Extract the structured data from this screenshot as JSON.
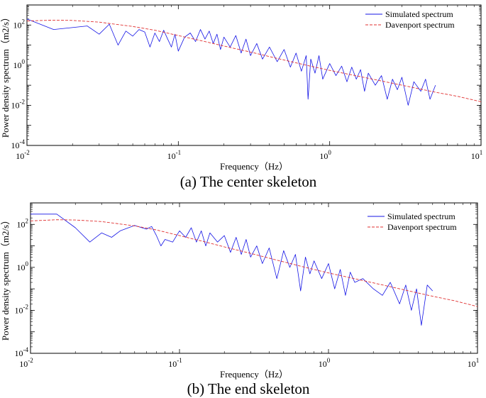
{
  "chart_data": [
    {
      "type": "line",
      "title": "",
      "caption": "(a) The center skeleton",
      "xlabel": "Frequency（Hz）",
      "ylabel": "Power density spectrum（m2/s）",
      "xscale": "log",
      "yscale": "log",
      "xlim": [
        0.01,
        10
      ],
      "ylim": [
        0.0001,
        1000
      ],
      "xticks": [
        {
          "base": "10",
          "exp": "-2",
          "value": 0.01
        },
        {
          "base": "10",
          "exp": "-1",
          "value": 0.1
        },
        {
          "base": "10",
          "exp": "0",
          "value": 1
        },
        {
          "base": "10",
          "exp": "1",
          "value": 10
        }
      ],
      "yticks": [
        {
          "base": "10",
          "exp": "-4",
          "value": 0.0001
        },
        {
          "base": "10",
          "exp": "-2",
          "value": 0.01
        },
        {
          "base": "10",
          "exp": "0",
          "value": 1
        },
        {
          "base": "10",
          "exp": "2",
          "value": 100
        }
      ],
      "legend_position": "top-right",
      "series": [
        {
          "name": "Simulated spectrum",
          "color": "#1414e6",
          "style": "solid",
          "x": [
            0.01,
            0.015,
            0.025,
            0.03,
            0.035,
            0.04,
            0.045,
            0.05,
            0.055,
            0.06,
            0.065,
            0.07,
            0.075,
            0.08,
            0.085,
            0.09,
            0.095,
            0.1,
            0.11,
            0.12,
            0.13,
            0.14,
            0.15,
            0.16,
            0.17,
            0.18,
            0.19,
            0.2,
            0.22,
            0.24,
            0.26,
            0.28,
            0.3,
            0.33,
            0.36,
            0.4,
            0.45,
            0.5,
            0.55,
            0.6,
            0.65,
            0.7,
            0.72,
            0.75,
            0.8,
            0.85,
            0.9,
            1,
            1.1,
            1.2,
            1.3,
            1.4,
            1.5,
            1.6,
            1.7,
            1.8,
            2,
            2.2,
            2.4,
            2.6,
            2.8,
            3,
            3.3,
            3.6,
            4,
            4.3,
            4.6,
            5
          ],
          "y": [
            200,
            60,
            90,
            35,
            110,
            10,
            50,
            28,
            60,
            45,
            8,
            40,
            15,
            55,
            20,
            8,
            35,
            5,
            25,
            40,
            15,
            60,
            20,
            50,
            12,
            35,
            6,
            25,
            8,
            30,
            4,
            20,
            3,
            12,
            2,
            8,
            1.5,
            6,
            0.8,
            4,
            0.5,
            3,
            0.02,
            2,
            0.4,
            3,
            0.2,
            1.2,
            0.3,
            0.9,
            0.15,
            0.8,
            0.2,
            0.6,
            0.05,
            0.4,
            0.1,
            0.3,
            0.02,
            0.2,
            0.06,
            0.25,
            0.01,
            0.15,
            0.05,
            0.2,
            0.02,
            0.1
          ]
        },
        {
          "name": "Davenport spectrum",
          "color": "#e03030",
          "style": "dashed",
          "x": [
            0.01,
            0.015,
            0.02,
            0.03,
            0.05,
            0.07,
            0.1,
            0.15,
            0.2,
            0.3,
            0.5,
            0.7,
            1,
            2,
            3,
            5,
            7,
            10
          ],
          "y": [
            160,
            175,
            170,
            140,
            85,
            55,
            30,
            15,
            9,
            4.5,
            1.8,
            1.0,
            0.55,
            0.19,
            0.1,
            0.045,
            0.028,
            0.015
          ]
        }
      ]
    },
    {
      "type": "line",
      "title": "",
      "caption": "(b) The end skeleton",
      "xlabel": "Frequency（Hz）",
      "ylabel": "Power density spectrum（m2/s）",
      "xscale": "log",
      "yscale": "log",
      "xlim": [
        0.01,
        10
      ],
      "ylim": [
        0.0001,
        1000
      ],
      "xticks": [
        {
          "base": "10",
          "exp": "-2",
          "value": 0.01
        },
        {
          "base": "10",
          "exp": "-1",
          "value": 0.1
        },
        {
          "base": "10",
          "exp": "0",
          "value": 1
        },
        {
          "base": "10",
          "exp": "1",
          "value": 10
        }
      ],
      "yticks": [
        {
          "base": "10",
          "exp": "-4",
          "value": 0.0001
        },
        {
          "base": "10",
          "exp": "-2",
          "value": 0.01
        },
        {
          "base": "10",
          "exp": "0",
          "value": 1
        },
        {
          "base": "10",
          "exp": "2",
          "value": 100
        }
      ],
      "legend_position": "top-right",
      "series": [
        {
          "name": "Simulated spectrum",
          "color": "#1414e6",
          "style": "solid",
          "x": [
            0.01,
            0.015,
            0.02,
            0.025,
            0.03,
            0.035,
            0.04,
            0.05,
            0.06,
            0.065,
            0.07,
            0.075,
            0.08,
            0.09,
            0.1,
            0.11,
            0.12,
            0.13,
            0.14,
            0.15,
            0.16,
            0.18,
            0.2,
            0.22,
            0.24,
            0.26,
            0.28,
            0.3,
            0.33,
            0.36,
            0.4,
            0.45,
            0.5,
            0.55,
            0.6,
            0.65,
            0.7,
            0.75,
            0.8,
            0.9,
            1,
            1.1,
            1.2,
            1.3,
            1.4,
            1.5,
            1.7,
            2,
            2.3,
            2.6,
            3,
            3.3,
            3.6,
            3.9,
            4.2,
            4.6,
            5
          ],
          "y": [
            300,
            300,
            70,
            15,
            40,
            25,
            50,
            90,
            60,
            80,
            30,
            10,
            20,
            15,
            50,
            25,
            70,
            15,
            50,
            10,
            40,
            15,
            30,
            5,
            25,
            4,
            20,
            3,
            10,
            1.5,
            8,
            0.3,
            6,
            1,
            4,
            0.08,
            3,
            0.5,
            2,
            0.3,
            1.5,
            0.1,
            0.8,
            0.05,
            0.6,
            0.2,
            0.3,
            0.1,
            0.05,
            0.2,
            0.02,
            0.15,
            0.01,
            0.1,
            0.002,
            0.15,
            0.08
          ]
        },
        {
          "name": "Davenport spectrum",
          "color": "#e03030",
          "style": "dashed",
          "x": [
            0.01,
            0.015,
            0.02,
            0.03,
            0.05,
            0.07,
            0.1,
            0.15,
            0.2,
            0.3,
            0.5,
            0.7,
            1,
            2,
            3,
            5,
            7,
            10
          ],
          "y": [
            145,
            165,
            160,
            135,
            85,
            55,
            30,
            15,
            9,
            4.5,
            1.8,
            1.0,
            0.55,
            0.19,
            0.1,
            0.045,
            0.028,
            0.015
          ]
        }
      ]
    }
  ]
}
